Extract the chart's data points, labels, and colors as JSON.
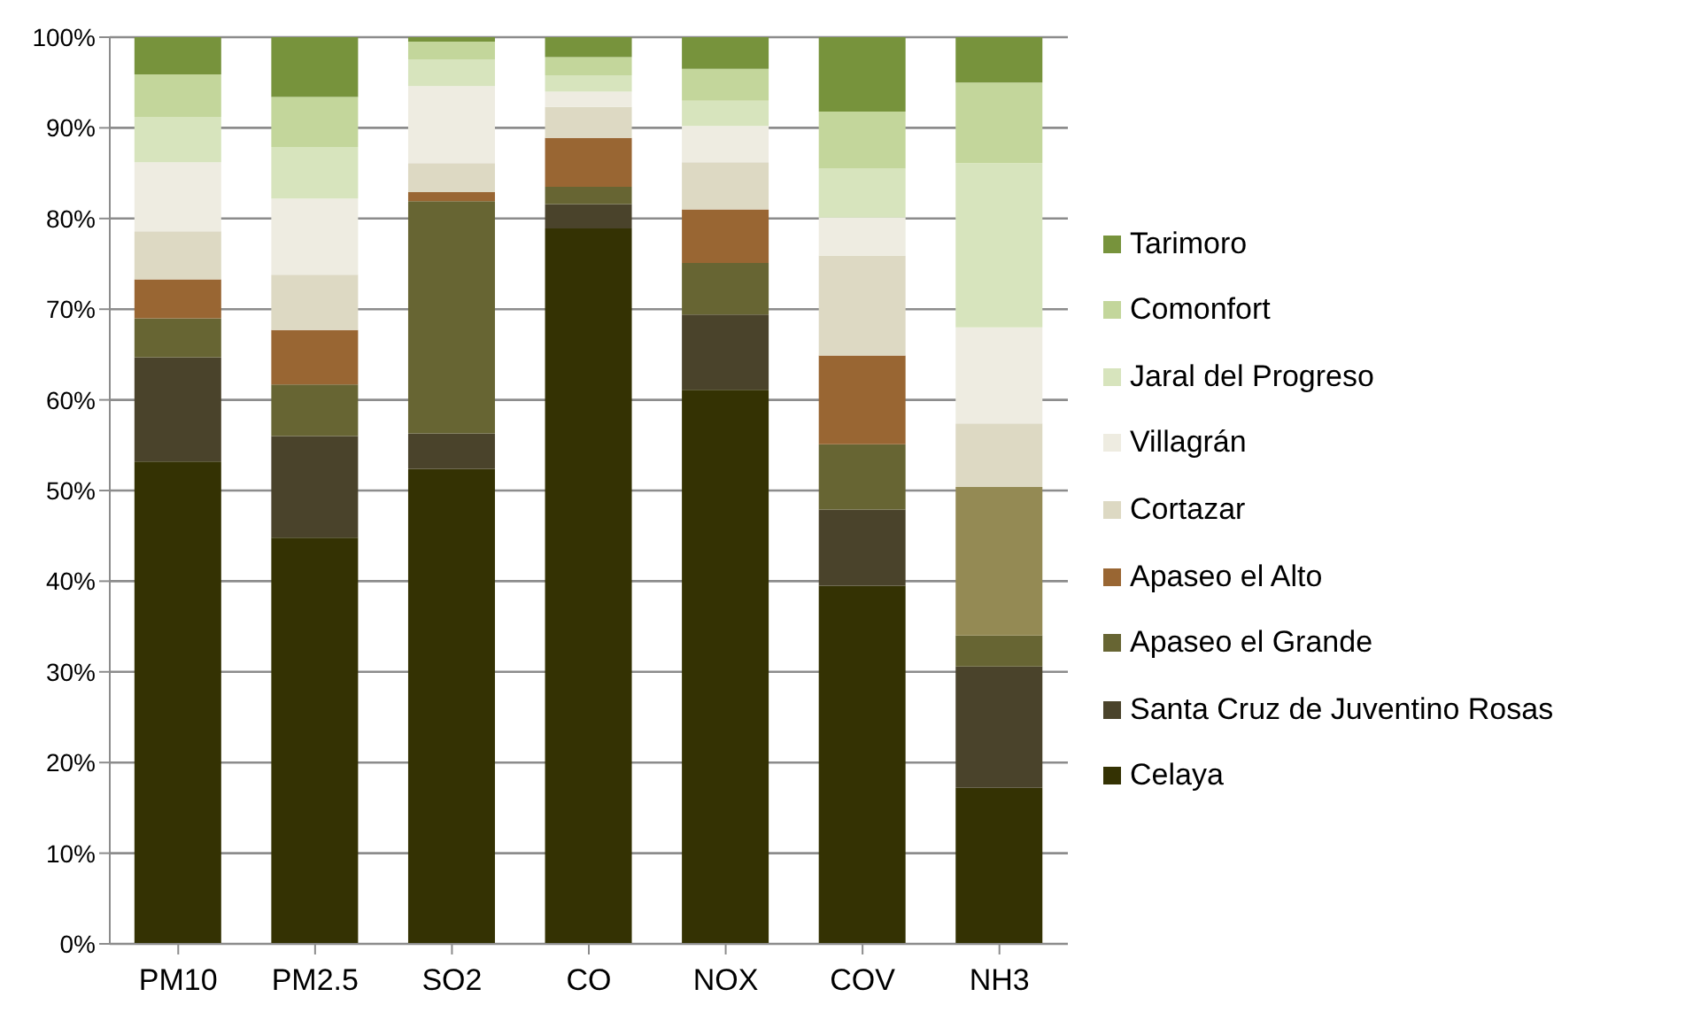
{
  "chart_data": {
    "type": "bar",
    "stacked": true,
    "categories": [
      "PM10",
      "PM2.5",
      "SO2",
      "CO",
      "NOX",
      "COV",
      "NH3"
    ],
    "ylim": [
      0,
      100
    ],
    "yticks": [
      {
        "value": 0,
        "label": "0%"
      },
      {
        "value": 10,
        "label": "10%"
      },
      {
        "value": 20,
        "label": "20%"
      },
      {
        "value": 30,
        "label": "30%"
      },
      {
        "value": 40,
        "label": "40%"
      },
      {
        "value": 50,
        "label": "50%"
      },
      {
        "value": 60,
        "label": "60%"
      },
      {
        "value": 70,
        "label": "70%"
      },
      {
        "value": 80,
        "label": "80%"
      },
      {
        "value": 90,
        "label": "90%"
      },
      {
        "value": 100,
        "label": "100%"
      }
    ],
    "grid": "y",
    "legend": "right",
    "series": [
      {
        "name": "Celaya",
        "color": "#343203",
        "values": [
          53.2,
          44.8,
          52.4,
          78.9,
          61.1,
          39.5,
          17.2
        ]
      },
      {
        "name": "Santa Cruz de Juventino Rosas",
        "color": "#4a432b",
        "values": [
          11.5,
          11.2,
          3.9,
          2.7,
          8.3,
          8.4,
          13.4
        ]
      },
      {
        "name": "Apaseo el Grande",
        "color": "#676533",
        "values": [
          4.3,
          5.7,
          25.6,
          1.9,
          5.7,
          7.2,
          3.4
        ]
      },
      {
        "name": "Apaseo el Alto",
        "color": "#996633",
        "colors": [
          "#996633",
          "#996633",
          "#996633",
          "#996633",
          "#996633",
          "#996633",
          "#948a54"
        ],
        "values": [
          4.3,
          6.0,
          1.0,
          5.4,
          5.9,
          9.8,
          16.4
        ]
      },
      {
        "name": "Cortazar",
        "color": "#ddd9c3",
        "values": [
          5.3,
          6.1,
          3.2,
          3.4,
          5.2,
          11.0,
          7.0
        ]
      },
      {
        "name": "Villagrán",
        "color": "#eeece1",
        "values": [
          7.6,
          8.4,
          8.5,
          1.7,
          4.0,
          4.2,
          10.6
        ]
      },
      {
        "name": "Jaral del Progreso",
        "color": "#d7e4bd",
        "values": [
          5.0,
          5.7,
          2.9,
          1.8,
          2.8,
          5.4,
          18.1
        ]
      },
      {
        "name": "Comonfort",
        "color": "#c3d69b",
        "values": [
          4.7,
          5.5,
          2.0,
          2.0,
          3.5,
          6.3,
          8.9
        ]
      },
      {
        "name": "Tarimoro",
        "color": "#77933c",
        "values": [
          4.1,
          6.6,
          0.5,
          2.2,
          3.5,
          8.2,
          5.0
        ]
      }
    ]
  }
}
